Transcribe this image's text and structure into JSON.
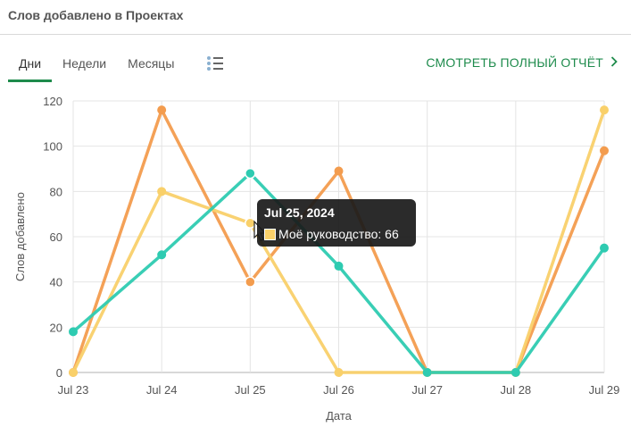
{
  "header": {
    "title": "Слов добавлено в Проектах"
  },
  "tabs": [
    {
      "label": "Дни",
      "active": true
    },
    {
      "label": "Недели",
      "active": false
    },
    {
      "label": "Месяцы",
      "active": false
    }
  ],
  "view_toggle_icon": "list-icon",
  "report_link": {
    "label": "СМОТРЕТЬ ПОЛНЫЙ ОТЧЁТ",
    "icon": "chevron-right-icon"
  },
  "tooltip": {
    "date": "Jul 25, 2024",
    "series": "Моё руководство",
    "value": "66",
    "separator": ": "
  },
  "chart_data": {
    "type": "line",
    "categories": [
      "Jul 23",
      "Jul 24",
      "Jul 25",
      "Jul 26",
      "Jul 27",
      "Jul 28",
      "Jul 29"
    ],
    "xlabel": "Дата",
    "ylabel": "Слов добавлено",
    "ylim": [
      0,
      120
    ],
    "yticks": [
      0,
      20,
      40,
      60,
      80,
      100,
      120
    ],
    "grid": true,
    "series": [
      {
        "color": "#f39c4e",
        "values": [
          0,
          116,
          40,
          89,
          0,
          0,
          98
        ]
      },
      {
        "name": "Моё руководство",
        "color": "#f9d06a",
        "values": [
          0,
          80,
          66,
          0,
          0,
          0,
          116
        ]
      },
      {
        "color": "#2ecbb1",
        "values": [
          18,
          52,
          88,
          47,
          0,
          0,
          55
        ]
      }
    ]
  }
}
